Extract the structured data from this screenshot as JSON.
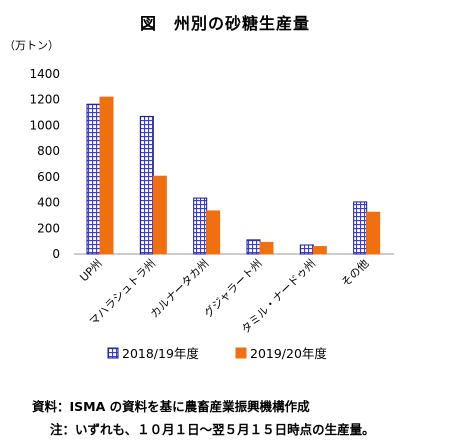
{
  "chart_data": {
    "type": "bar",
    "title": "図　州別の砂糖生産量",
    "unit_label": "（万トン）",
    "categories": [
      "UP州",
      "マハラシュトラ州",
      "カルナータカ州",
      "グジャラート州",
      "タミル・ナードゥ州",
      "その他"
    ],
    "series": [
      {
        "name": "2018/19年度",
        "values": [
          1165,
          1070,
          435,
          110,
          70,
          405
        ],
        "color": "#3b3bd6",
        "pattern": "grid"
      },
      {
        "name": "2019/20年度",
        "values": [
          1220,
          605,
          335,
          90,
          58,
          325
        ],
        "color": "#f07010",
        "pattern": "solid"
      }
    ],
    "ylim": [
      0,
      1400
    ],
    "yticks": [
      "0",
      "200",
      "400",
      "600",
      "800",
      "1000",
      "1200",
      "1400"
    ],
    "grid": false,
    "legend": "bottom"
  },
  "notes": {
    "source": "資料：ISMA の資料を基に農畜産業振興機構作成",
    "footnote": "注：いずれも、１０月１日～翌５月１５日時点の生産量。"
  }
}
